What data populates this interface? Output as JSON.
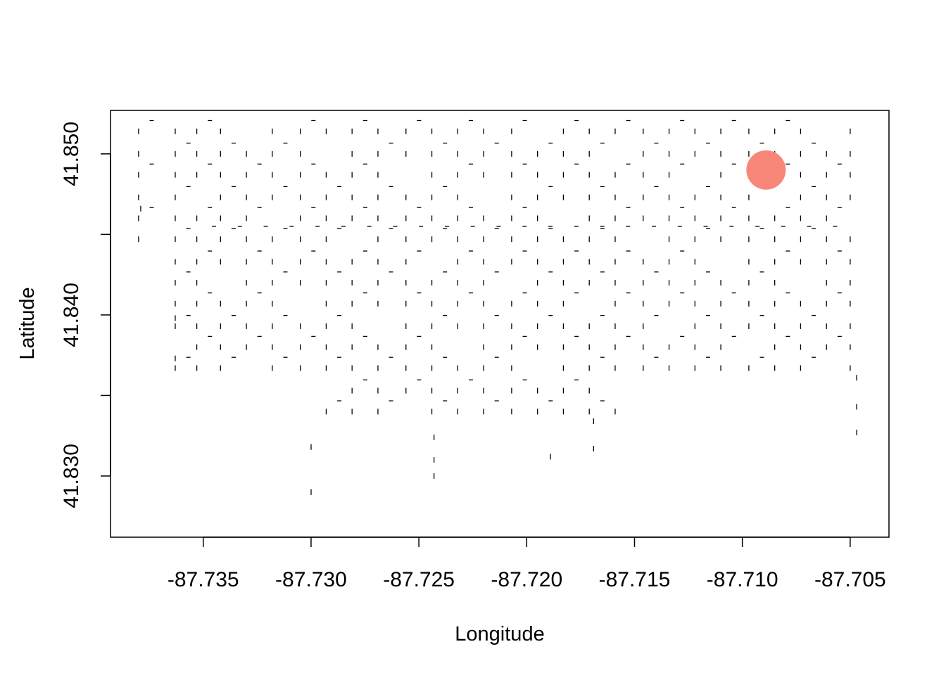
{
  "chart_data": {
    "type": "scatter",
    "title": "",
    "xlabel": "Longitude",
    "ylabel": "Latitude",
    "xlim": [
      -87.7393,
      -87.7032
    ],
    "ylim": [
      41.8262,
      41.8527
    ],
    "xticks": [
      -87.735,
      -87.73,
      -87.725,
      -87.72,
      -87.715,
      -87.71,
      -87.705
    ],
    "xtick_labels": [
      "-87.735",
      "-87.730",
      "-87.725",
      "-87.720",
      "-87.715",
      "-87.710",
      "-87.705"
    ],
    "yticks": [
      41.83,
      41.835,
      41.84,
      41.845,
      41.85
    ],
    "ytick_labels": [
      "41.830",
      "",
      "41.840",
      "",
      "41.850"
    ],
    "grid": false,
    "legend": "none",
    "point_color": "#000000",
    "highlight": {
      "x": -87.7089,
      "y": 41.849,
      "color": "#F8877A"
    },
    "point_columns_x": [
      -87.738,
      -87.7363,
      -87.7353,
      -87.7342,
      -87.733,
      -87.7318,
      -87.7305,
      -87.7293,
      -87.7281,
      -87.7269,
      -87.7256,
      -87.7244,
      -87.7232,
      -87.722,
      -87.7207,
      -87.7195,
      -87.7183,
      -87.7171,
      -87.7159,
      -87.7146,
      -87.7134,
      -87.7122,
      -87.711,
      -87.7097,
      -87.7085,
      -87.7073,
      -87.7061,
      -87.705
    ],
    "point_rows_y": [
      41.8514,
      41.85,
      41.8487,
      41.8473,
      41.846,
      41.8447,
      41.8433,
      41.842,
      41.8407,
      41.8393,
      41.838,
      41.8367,
      41.8353,
      41.834
    ],
    "sparse_points": [
      [
        -87.7379,
        41.8466
      ],
      [
        -87.7363,
        41.8398
      ],
      [
        -87.7363,
        41.8373
      ],
      [
        -87.73,
        41.8318
      ],
      [
        -87.73,
        41.829
      ],
      [
        -87.7243,
        41.8324
      ],
      [
        -87.7243,
        41.831
      ],
      [
        -87.7243,
        41.83
      ],
      [
        -87.7189,
        41.8312
      ],
      [
        -87.7169,
        41.8334
      ],
      [
        -87.7169,
        41.8317
      ],
      [
        -87.7047,
        41.8361
      ],
      [
        -87.7047,
        41.8343
      ],
      [
        -87.7047,
        41.8327
      ]
    ]
  }
}
